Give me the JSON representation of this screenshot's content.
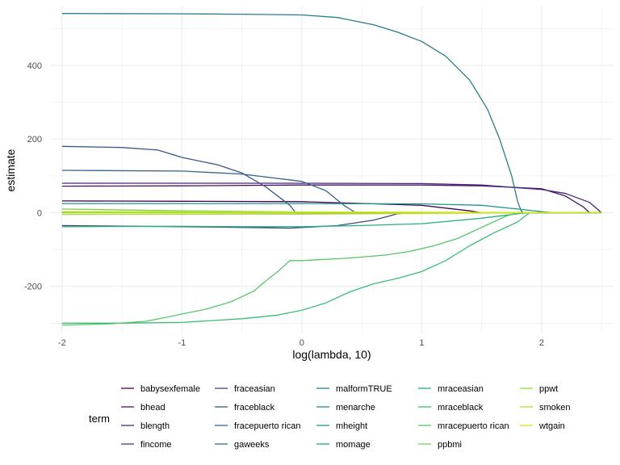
{
  "chart_data": {
    "type": "line",
    "xlabel": "log(lambda, 10)",
    "ylabel": "estimate",
    "legend_title": "term",
    "legend_position": "bottom",
    "grid": true,
    "xlim": [
      -2.1,
      2.6
    ],
    "ylim": [
      -330,
      560
    ],
    "x_ticks": [
      -2,
      -1,
      0,
      1,
      2
    ],
    "x_tick_labels": [
      "-2",
      "-1",
      "0",
      "1",
      "2"
    ],
    "y_ticks": [
      -200,
      0,
      200,
      400
    ],
    "y_tick_labels": [
      "-200",
      "0",
      "200",
      "400"
    ],
    "series": [
      {
        "name": "babysexfemale",
        "color": "#440154",
        "points": [
          [
            -2,
            32
          ],
          [
            -1,
            31
          ],
          [
            0,
            30
          ],
          [
            1,
            20
          ],
          [
            1.4,
            5
          ],
          [
            1.5,
            0
          ],
          [
            2.5,
            0
          ]
        ]
      },
      {
        "name": "bhead",
        "color": "#481568",
        "points": [
          [
            -2,
            72
          ],
          [
            -1,
            73
          ],
          [
            0,
            75
          ],
          [
            1,
            75
          ],
          [
            1.5,
            73
          ],
          [
            2,
            65
          ],
          [
            2.2,
            45
          ],
          [
            2.35,
            15
          ],
          [
            2.4,
            0
          ],
          [
            2.5,
            0
          ]
        ]
      },
      {
        "name": "blength",
        "color": "#482677",
        "points": [
          [
            -2,
            80
          ],
          [
            -1,
            80
          ],
          [
            0,
            80
          ],
          [
            1,
            79
          ],
          [
            1.5,
            75
          ],
          [
            2,
            63
          ],
          [
            2.2,
            52
          ],
          [
            2.4,
            28
          ],
          [
            2.5,
            0
          ]
        ]
      },
      {
        "name": "fincome",
        "color": "#453781",
        "points": [
          [
            -2,
            1
          ],
          [
            0,
            1
          ],
          [
            1,
            0
          ],
          [
            2.5,
            0
          ]
        ]
      },
      {
        "name": "fraceasian",
        "color": "#3F4788",
        "points": [
          [
            -2,
            -35
          ],
          [
            -1,
            -38
          ],
          [
            -0.5,
            -40
          ],
          [
            -0.1,
            -42
          ],
          [
            0.3,
            -35
          ],
          [
            0.6,
            -20
          ],
          [
            0.8,
            -3
          ],
          [
            0.9,
            0
          ],
          [
            2.5,
            0
          ]
        ]
      },
      {
        "name": "fraceblack",
        "color": "#39558C",
        "points": [
          [
            -2,
            180
          ],
          [
            -1.5,
            177
          ],
          [
            -1.2,
            170
          ],
          [
            -1,
            150
          ],
          [
            -0.7,
            130
          ],
          [
            -0.5,
            108
          ],
          [
            -0.3,
            70
          ],
          [
            -0.1,
            20
          ],
          [
            -0.05,
            0
          ],
          [
            2.5,
            0
          ]
        ]
      },
      {
        "name": "fracepuerto rican",
        "color": "#32648E",
        "points": [
          [
            -2,
            115
          ],
          [
            -1,
            113
          ],
          [
            -0.5,
            105
          ],
          [
            0,
            85
          ],
          [
            0.2,
            60
          ],
          [
            0.35,
            20
          ],
          [
            0.45,
            0
          ],
          [
            2.5,
            0
          ]
        ]
      },
      {
        "name": "gaweeks",
        "color": "#2D718E",
        "points": [
          [
            -2,
            0
          ],
          [
            2.5,
            0
          ]
        ]
      },
      {
        "name": "malformTRUE",
        "color": "#297B8E",
        "points": [
          [
            -2,
            541
          ],
          [
            -1,
            540
          ],
          [
            -0.5,
            539
          ],
          [
            0,
            537
          ],
          [
            0.3,
            530
          ],
          [
            0.6,
            510
          ],
          [
            0.8,
            490
          ],
          [
            1,
            465
          ],
          [
            1.2,
            425
          ],
          [
            1.4,
            360
          ],
          [
            1.55,
            280
          ],
          [
            1.65,
            200
          ],
          [
            1.75,
            100
          ],
          [
            1.8,
            30
          ],
          [
            1.83,
            5
          ],
          [
            1.85,
            0
          ],
          [
            2.5,
            0
          ]
        ]
      },
      {
        "name": "menarche",
        "color": "#23898E",
        "points": [
          [
            -2,
            1
          ],
          [
            0,
            0
          ],
          [
            2.5,
            0
          ]
        ]
      },
      {
        "name": "mheight",
        "color": "#1F968B",
        "points": [
          [
            -2,
            25
          ],
          [
            -1,
            25
          ],
          [
            0,
            25
          ],
          [
            1,
            24
          ],
          [
            1.5,
            20
          ],
          [
            1.8,
            10
          ],
          [
            2,
            3
          ],
          [
            2.1,
            0
          ],
          [
            2.5,
            0
          ]
        ]
      },
      {
        "name": "momage",
        "color": "#20A386",
        "points": [
          [
            -2,
            1
          ],
          [
            2.5,
            0
          ]
        ]
      },
      {
        "name": "mraceasian",
        "color": "#29AF7F",
        "points": [
          [
            -2,
            -38
          ],
          [
            -1,
            -37
          ],
          [
            -0.5,
            -38
          ],
          [
            0,
            -38
          ],
          [
            0.5,
            -35
          ],
          [
            1,
            -30
          ],
          [
            1.5,
            -15
          ],
          [
            1.8,
            -3
          ],
          [
            1.9,
            0
          ],
          [
            2.5,
            0
          ]
        ]
      },
      {
        "name": "mraceblack",
        "color": "#3CBC75",
        "points": [
          [
            -2,
            -300
          ],
          [
            -1.5,
            -300
          ],
          [
            -1,
            -298
          ],
          [
            -0.5,
            -288
          ],
          [
            -0.2,
            -278
          ],
          [
            0,
            -265
          ],
          [
            0.2,
            -245
          ],
          [
            0.4,
            -215
          ],
          [
            0.6,
            -193
          ],
          [
            0.8,
            -178
          ],
          [
            1,
            -160
          ],
          [
            1.2,
            -130
          ],
          [
            1.4,
            -90
          ],
          [
            1.6,
            -55
          ],
          [
            1.8,
            -25
          ],
          [
            1.9,
            0
          ],
          [
            2.5,
            0
          ]
        ]
      },
      {
        "name": "mracepuerto rican",
        "color": "#56C667",
        "points": [
          [
            -2,
            -305
          ],
          [
            -1.6,
            -302
          ],
          [
            -1.3,
            -295
          ],
          [
            -1.1,
            -282
          ],
          [
            -1,
            -275
          ],
          [
            -0.8,
            -262
          ],
          [
            -0.6,
            -243
          ],
          [
            -0.4,
            -213
          ],
          [
            -0.3,
            -185
          ],
          [
            -0.2,
            -160
          ],
          [
            -0.1,
            -130
          ],
          [
            0,
            -130
          ],
          [
            0.4,
            -123
          ],
          [
            0.7,
            -115
          ],
          [
            0.9,
            -105
          ],
          [
            1.1,
            -90
          ],
          [
            1.3,
            -70
          ],
          [
            1.5,
            -40
          ],
          [
            1.7,
            -10
          ],
          [
            1.8,
            0
          ],
          [
            2.5,
            0
          ]
        ]
      },
      {
        "name": "ppbmi",
        "color": "#75D054",
        "points": [
          [
            -2,
            10
          ],
          [
            -1,
            5
          ],
          [
            0,
            2
          ],
          [
            1,
            1
          ],
          [
            2.5,
            0
          ]
        ]
      },
      {
        "name": "ppwt",
        "color": "#95D840",
        "points": [
          [
            -2,
            0
          ],
          [
            2.5,
            0
          ]
        ]
      },
      {
        "name": "smoken",
        "color": "#BADE28",
        "points": [
          [
            -2,
            -5
          ],
          [
            0,
            -4
          ],
          [
            1,
            -2
          ],
          [
            2,
            0
          ],
          [
            2.5,
            0
          ]
        ]
      },
      {
        "name": "wtgain",
        "color": "#DCE318",
        "points": [
          [
            -2,
            3
          ],
          [
            0,
            2
          ],
          [
            2.5,
            0
          ]
        ]
      }
    ]
  }
}
